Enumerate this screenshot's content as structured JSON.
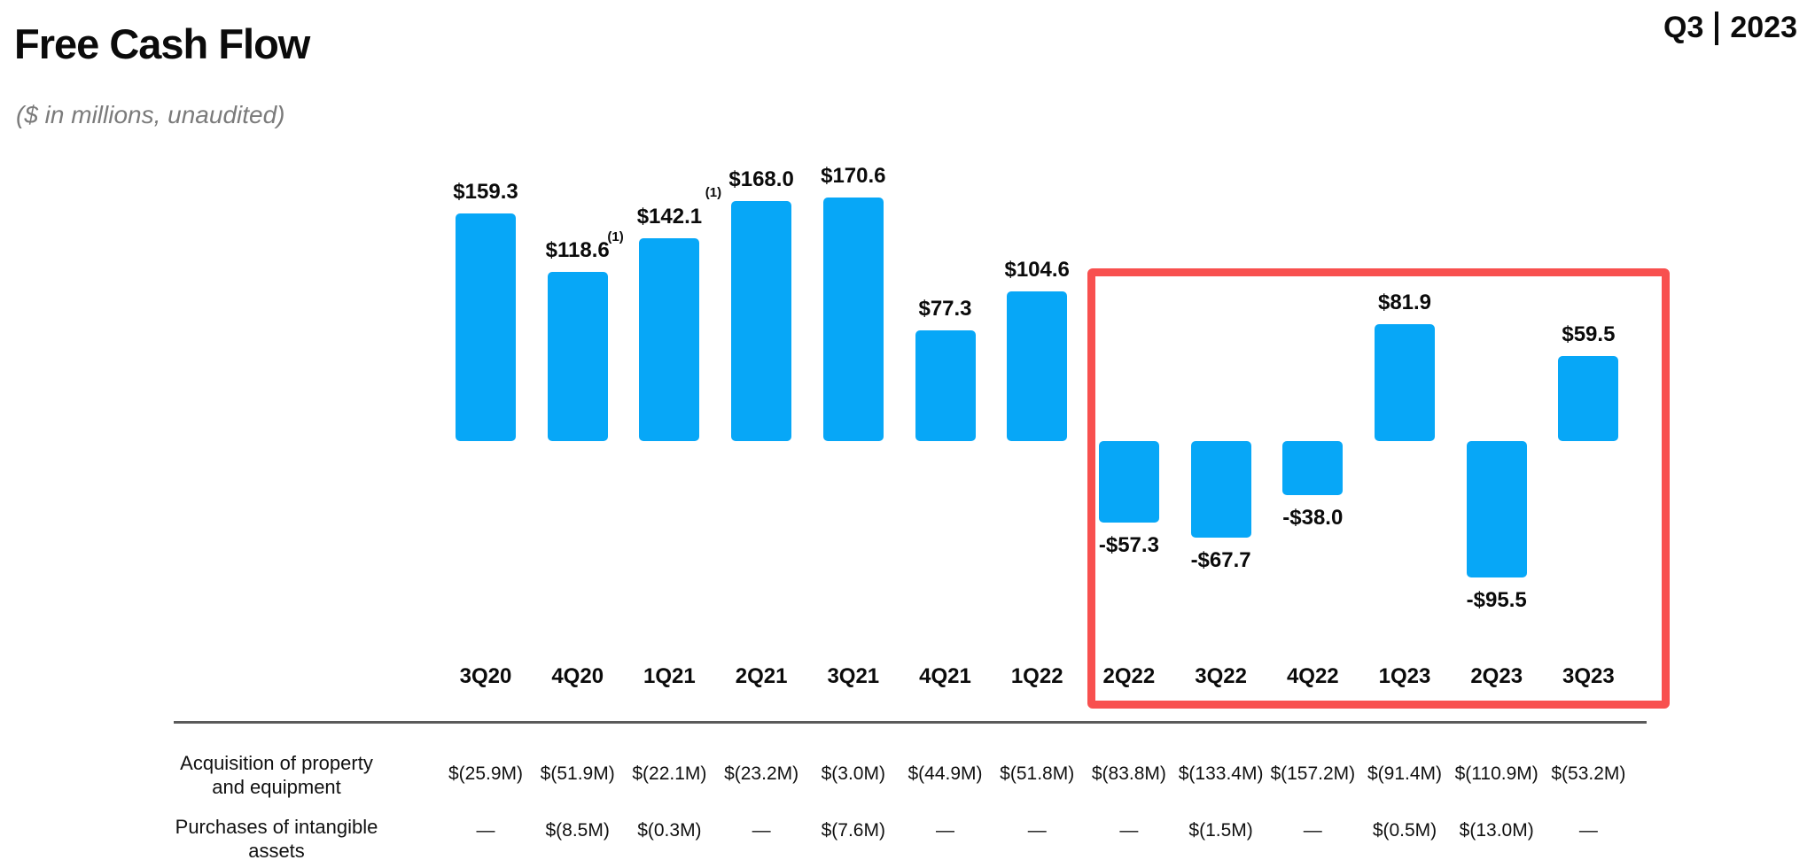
{
  "header": {
    "title": "Free Cash Flow",
    "subtitle": "($ in millions, unaudited)",
    "period_quarter": "Q3",
    "period_year": "2023"
  },
  "chart_data": {
    "type": "bar",
    "title": "Free Cash Flow",
    "units": "$ in millions",
    "categories": [
      "3Q20",
      "4Q20",
      "1Q21",
      "2Q21",
      "3Q21",
      "4Q21",
      "1Q22",
      "2Q22",
      "3Q22",
      "4Q22",
      "1Q23",
      "2Q23",
      "3Q23"
    ],
    "values": [
      159.3,
      118.6,
      142.1,
      168.0,
      170.6,
      77.3,
      104.6,
      -57.3,
      -67.7,
      -38.0,
      81.9,
      -95.5,
      59.5
    ],
    "value_labels": [
      "$159.3",
      "$118.6",
      "$142.1",
      "$168.0",
      "$170.6",
      "$77.3",
      "$104.6",
      "-$57.3",
      "-$67.7",
      "-$38.0",
      "$81.9",
      "-$95.5",
      "$59.5"
    ],
    "footnote_markers": [
      {
        "category": "4Q20",
        "marker": "(1)",
        "style": "attached"
      },
      {
        "category": "1Q21",
        "marker": "(1)",
        "style": "raised"
      }
    ],
    "highlighted_categories": [
      "2Q22",
      "3Q22",
      "4Q22",
      "1Q23",
      "2Q23",
      "3Q23"
    ],
    "bar_color": "#07a7f7",
    "highlight_box_color": "#f8504f",
    "xlabel": "",
    "ylabel": "",
    "grid": false,
    "legend": false
  },
  "table": {
    "rows": [
      {
        "label_line1": "Acquisition of property",
        "label_line2": "and equipment",
        "values": [
          "$(25.9M)",
          "$(51.9M)",
          "$(22.1M)",
          "$(23.2M)",
          "$(3.0M)",
          "$(44.9M)",
          "$(51.8M)",
          "$(83.8M)",
          "$(133.4M)",
          "$(157.2M)",
          "$(91.4M)",
          "$(110.9M)",
          "$(53.2M)"
        ]
      },
      {
        "label_line1": "Purchases of intangible",
        "label_line2": "assets",
        "values": [
          "—",
          "$(8.5M)",
          "$(0.3M)",
          "—",
          "$(7.6M)",
          "—",
          "—",
          "—",
          "$(1.5M)",
          "—",
          "$(0.5M)",
          "$(13.0M)",
          "—"
        ]
      }
    ]
  }
}
